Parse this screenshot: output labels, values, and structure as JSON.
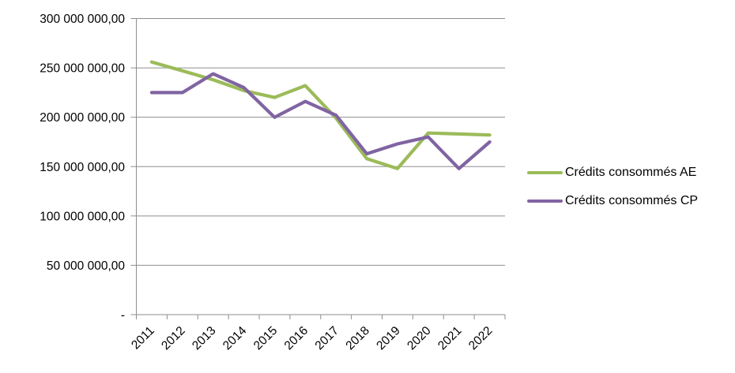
{
  "chart_data": {
    "type": "line",
    "title": "",
    "xlabel": "",
    "ylabel": "",
    "categories": [
      "2011",
      "2012",
      "2013",
      "2014",
      "2015",
      "2016",
      "2017",
      "2018",
      "2019",
      "2020",
      "2021",
      "2022"
    ],
    "series": [
      {
        "name": "Crédits consommés AE",
        "color": "#9BBB59",
        "values": [
          256000000,
          247000000,
          238000000,
          227000000,
          220000000,
          232000000,
          199000000,
          158000000,
          148000000,
          184000000,
          183000000,
          182000000
        ]
      },
      {
        "name": "Crédits consommés CP",
        "color": "#8064A2",
        "values": [
          225000000,
          225000000,
          244000000,
          230000000,
          200000000,
          216000000,
          202000000,
          163000000,
          173000000,
          180000000,
          148000000,
          175000000
        ]
      }
    ],
    "ylim": [
      0,
      300000000
    ],
    "ytick_step": 50000000,
    "ytick_labels": [
      "-",
      "50 000 000,00",
      "100 000 000,00",
      "150 000 000,00",
      "200 000 000,00",
      "250 000 000,00",
      "300 000 000,00"
    ],
    "grid": true,
    "legend_position": "right",
    "axis_color": "#8E8E8E",
    "text_color": "#000000"
  }
}
